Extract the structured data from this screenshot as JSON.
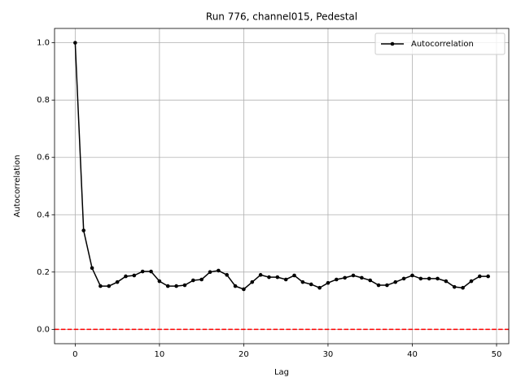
{
  "chart_data": {
    "type": "line",
    "title": "Run 776, channel015, Pedestal",
    "xlabel": "Lag",
    "ylabel": "Autocorrelation",
    "x": [
      0,
      1,
      2,
      3,
      4,
      5,
      6,
      7,
      8,
      9,
      10,
      11,
      12,
      13,
      14,
      15,
      16,
      17,
      18,
      19,
      20,
      21,
      22,
      23,
      24,
      25,
      26,
      27,
      28,
      29,
      30,
      31,
      32,
      33,
      34,
      35,
      36,
      37,
      38,
      39,
      40,
      41,
      42,
      43,
      44,
      45,
      46,
      47,
      48,
      49
    ],
    "series": [
      {
        "name": "Autocorrelation",
        "color": "#000000",
        "values": [
          1.0,
          0.345,
          0.214,
          0.151,
          0.151,
          0.165,
          0.185,
          0.188,
          0.202,
          0.202,
          0.168,
          0.151,
          0.151,
          0.154,
          0.171,
          0.174,
          0.2,
          0.205,
          0.19,
          0.151,
          0.14,
          0.165,
          0.19,
          0.182,
          0.182,
          0.174,
          0.188,
          0.165,
          0.157,
          0.145,
          0.162,
          0.174,
          0.18,
          0.188,
          0.18,
          0.171,
          0.154,
          0.154,
          0.165,
          0.177,
          0.188,
          0.177,
          0.177,
          0.177,
          0.168,
          0.148,
          0.145,
          0.168,
          0.185,
          0.185
        ]
      }
    ],
    "reference_line": {
      "value": 0,
      "color": "#ff0000"
    },
    "xlim": [
      -2.45,
      51.45
    ],
    "xticks": [
      0,
      10,
      20,
      30,
      40,
      50
    ],
    "ylim": [
      -0.05,
      1.05
    ],
    "yticks": [
      {
        "value": 0,
        "label": "0.0"
      },
      0.2,
      0.4,
      0.6,
      0.8,
      {
        "value": 1,
        "label": "1.0"
      }
    ],
    "grid": true,
    "legend": "upper right"
  }
}
